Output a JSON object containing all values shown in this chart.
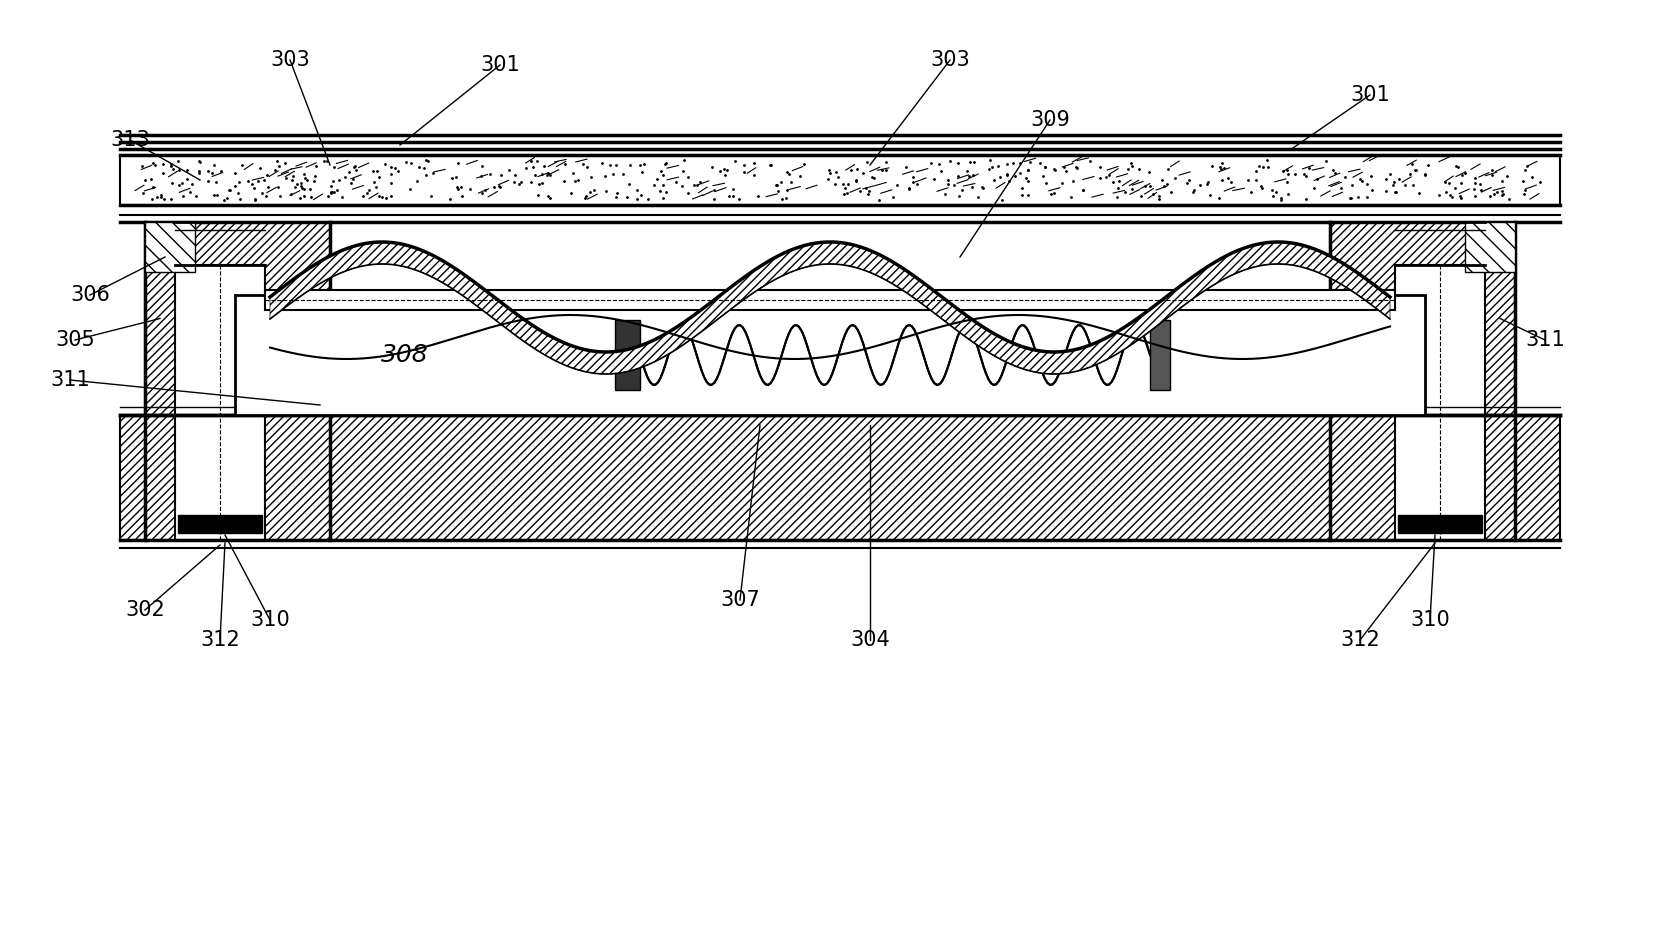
{
  "bg_color": "#ffffff",
  "figsize": [
    16.6,
    9.52
  ],
  "dpi": 100
}
